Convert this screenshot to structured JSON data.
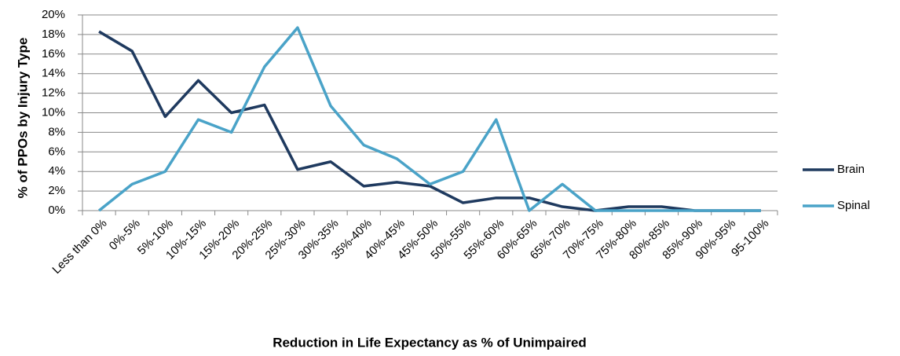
{
  "chart_data": {
    "type": "line",
    "x_label": "Reduction in Life Expectancy as % of Unimpaired",
    "y_label": "% of PPOs by Injury Type",
    "categories": [
      "Less than 0%",
      "0%-5%",
      "5%-10%",
      "10%-15%",
      "15%-20%",
      "20%-25%",
      "25%-30%",
      "30%-35%",
      "35%-40%",
      "40%-45%",
      "45%-50%",
      "50%-55%",
      "55%-60%",
      "60%-65%",
      "65%-70%",
      "70%-75%",
      "75%-80%",
      "80%-85%",
      "85%-90%",
      "90%-95%",
      "95-100%"
    ],
    "series": [
      {
        "name": "Brain",
        "color": "#1f3a5f",
        "values": [
          18.3,
          16.3,
          9.6,
          13.3,
          10.0,
          10.8,
          4.2,
          5.0,
          2.5,
          2.9,
          2.5,
          0.8,
          1.3,
          1.3,
          0.4,
          0,
          0.4,
          0.4,
          0,
          0,
          0
        ]
      },
      {
        "name": "Spinal",
        "color": "#4aa3c8",
        "values": [
          0,
          2.7,
          4.0,
          9.3,
          8.0,
          14.7,
          18.7,
          10.7,
          6.7,
          5.3,
          2.7,
          4.0,
          9.3,
          0,
          2.7,
          0,
          0,
          0,
          0,
          0,
          0
        ]
      }
    ],
    "ylim": [
      0,
      20
    ],
    "yticks": [
      {
        "value": 0,
        "label": "0%"
      },
      {
        "value": 2,
        "label": "2%"
      },
      {
        "value": 4,
        "label": "4%"
      },
      {
        "value": 6,
        "label": "6%"
      },
      {
        "value": 8,
        "label": "8%"
      },
      {
        "value": 10,
        "label": "10%"
      },
      {
        "value": 12,
        "label": "12%"
      },
      {
        "value": 14,
        "label": "14%"
      },
      {
        "value": 16,
        "label": "16%"
      },
      {
        "value": 18,
        "label": "18%"
      },
      {
        "value": 20,
        "label": "20%"
      }
    ],
    "grid": true,
    "legend": "right"
  }
}
